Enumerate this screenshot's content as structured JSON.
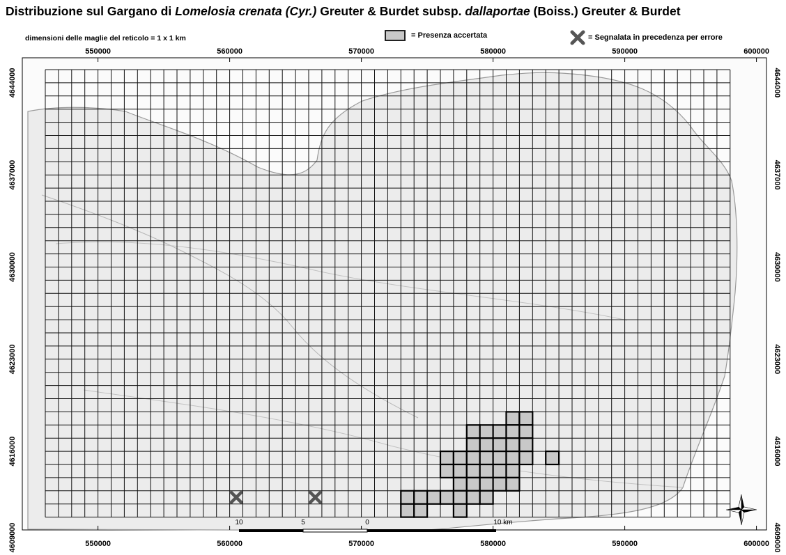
{
  "title": {
    "prefix": "Distribuzione sul Gargano di ",
    "species": "Lomelosia crenata (Cyr.)",
    "mid": " Greuter & Burdet subsp. ",
    "subspecies": "dallaportae",
    "suffix": "  (Boiss.) Greuter & Burdet"
  },
  "grid_note": "dimensioni delle maglie del reticolo = 1 x 1 km",
  "legend": {
    "presence_label": "= Presenza accertata",
    "error_label": "= Segnalata in precedenza per errore",
    "presence_color": "#c8c8c8",
    "error_color": "#555555"
  },
  "axes": {
    "x_ticks": [
      "550000",
      "560000",
      "570000",
      "580000",
      "590000",
      "600000"
    ],
    "x_tick_values": [
      550000,
      560000,
      570000,
      580000,
      590000,
      600000
    ],
    "y_ticks": [
      "4644000",
      "4637000",
      "4630000",
      "4623000",
      "4616000",
      "4609000"
    ],
    "y_tick_values": [
      4644000,
      4637000,
      4630000,
      4623000,
      4616000,
      4609000
    ]
  },
  "scale_bar": {
    "labels": [
      "10",
      "5",
      "0",
      "10 km"
    ]
  },
  "north_arrow": "compass-rose",
  "map_data": {
    "grid_cell_km": 1,
    "grid_x_range": [
      546000,
      598000
    ],
    "grid_y_range": [
      4611000,
      4645000
    ],
    "presence_cells": [
      [
        581,
        4618
      ],
      [
        582,
        4618
      ],
      [
        578,
        4617
      ],
      [
        579,
        4617
      ],
      [
        580,
        4617
      ],
      [
        581,
        4617
      ],
      [
        582,
        4617
      ],
      [
        578,
        4616
      ],
      [
        579,
        4616
      ],
      [
        580,
        4616
      ],
      [
        581,
        4616
      ],
      [
        582,
        4616
      ],
      [
        576,
        4615
      ],
      [
        577,
        4615
      ],
      [
        578,
        4615
      ],
      [
        579,
        4615
      ],
      [
        580,
        4615
      ],
      [
        581,
        4615
      ],
      [
        582,
        4615
      ],
      [
        584,
        4615
      ],
      [
        576,
        4614
      ],
      [
        577,
        4614
      ],
      [
        578,
        4614
      ],
      [
        579,
        4614
      ],
      [
        580,
        4614
      ],
      [
        581,
        4614
      ],
      [
        577,
        4613
      ],
      [
        578,
        4613
      ],
      [
        579,
        4613
      ],
      [
        580,
        4613
      ],
      [
        581,
        4613
      ],
      [
        573,
        4612
      ],
      [
        574,
        4612
      ],
      [
        575,
        4612
      ],
      [
        576,
        4612
      ],
      [
        577,
        4612
      ],
      [
        578,
        4612
      ],
      [
        579,
        4612
      ],
      [
        573,
        4611
      ],
      [
        574,
        4611
      ],
      [
        577,
        4611
      ]
    ],
    "error_points": [
      [
        560.5,
        4612.5
      ],
      [
        566.5,
        4612.5
      ]
    ]
  }
}
